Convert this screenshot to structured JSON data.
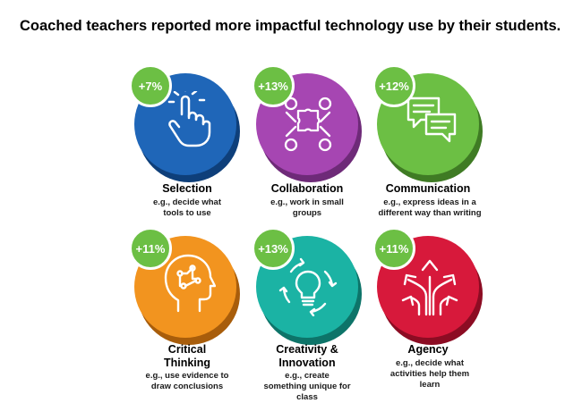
{
  "title": "Coached teachers reported more impactful technology use by their students.",
  "items": [
    {
      "badge": "+7%",
      "label": "Selection",
      "desc": "e.g., decide what tools to use",
      "icon": "pointer-hand-icon",
      "color": "#1f66b8",
      "shadow": "#0e3f7a"
    },
    {
      "badge": "+13%",
      "label": "Collaboration",
      "desc": "e.g., work in small groups",
      "icon": "people-puzzle-icon",
      "color": "#a646b2",
      "shadow": "#6e2a78"
    },
    {
      "badge": "+12%",
      "label": "Communication",
      "desc": "e.g., express ideas in a different way than writing",
      "icon": "chat-bubbles-icon",
      "color": "#6cbf44",
      "shadow": "#3f7b24"
    },
    {
      "badge": "+11%",
      "label": "Critical Thinking",
      "desc": "e.g., use evidence to draw conclusions",
      "icon": "brain-head-icon",
      "color": "#f2941f",
      "shadow": "#a85d0b"
    },
    {
      "badge": "+13%",
      "label": "Creativity & Innovation",
      "desc": "e.g., create something unique for class",
      "icon": "lightbulb-cycle-icon",
      "color": "#1bb3a4",
      "shadow": "#0d7469"
    },
    {
      "badge": "+11%",
      "label": "Agency",
      "desc": "e.g., decide what activities help them learn",
      "icon": "diverging-arrows-icon",
      "color": "#d7193b",
      "shadow": "#8c0c23"
    }
  ]
}
